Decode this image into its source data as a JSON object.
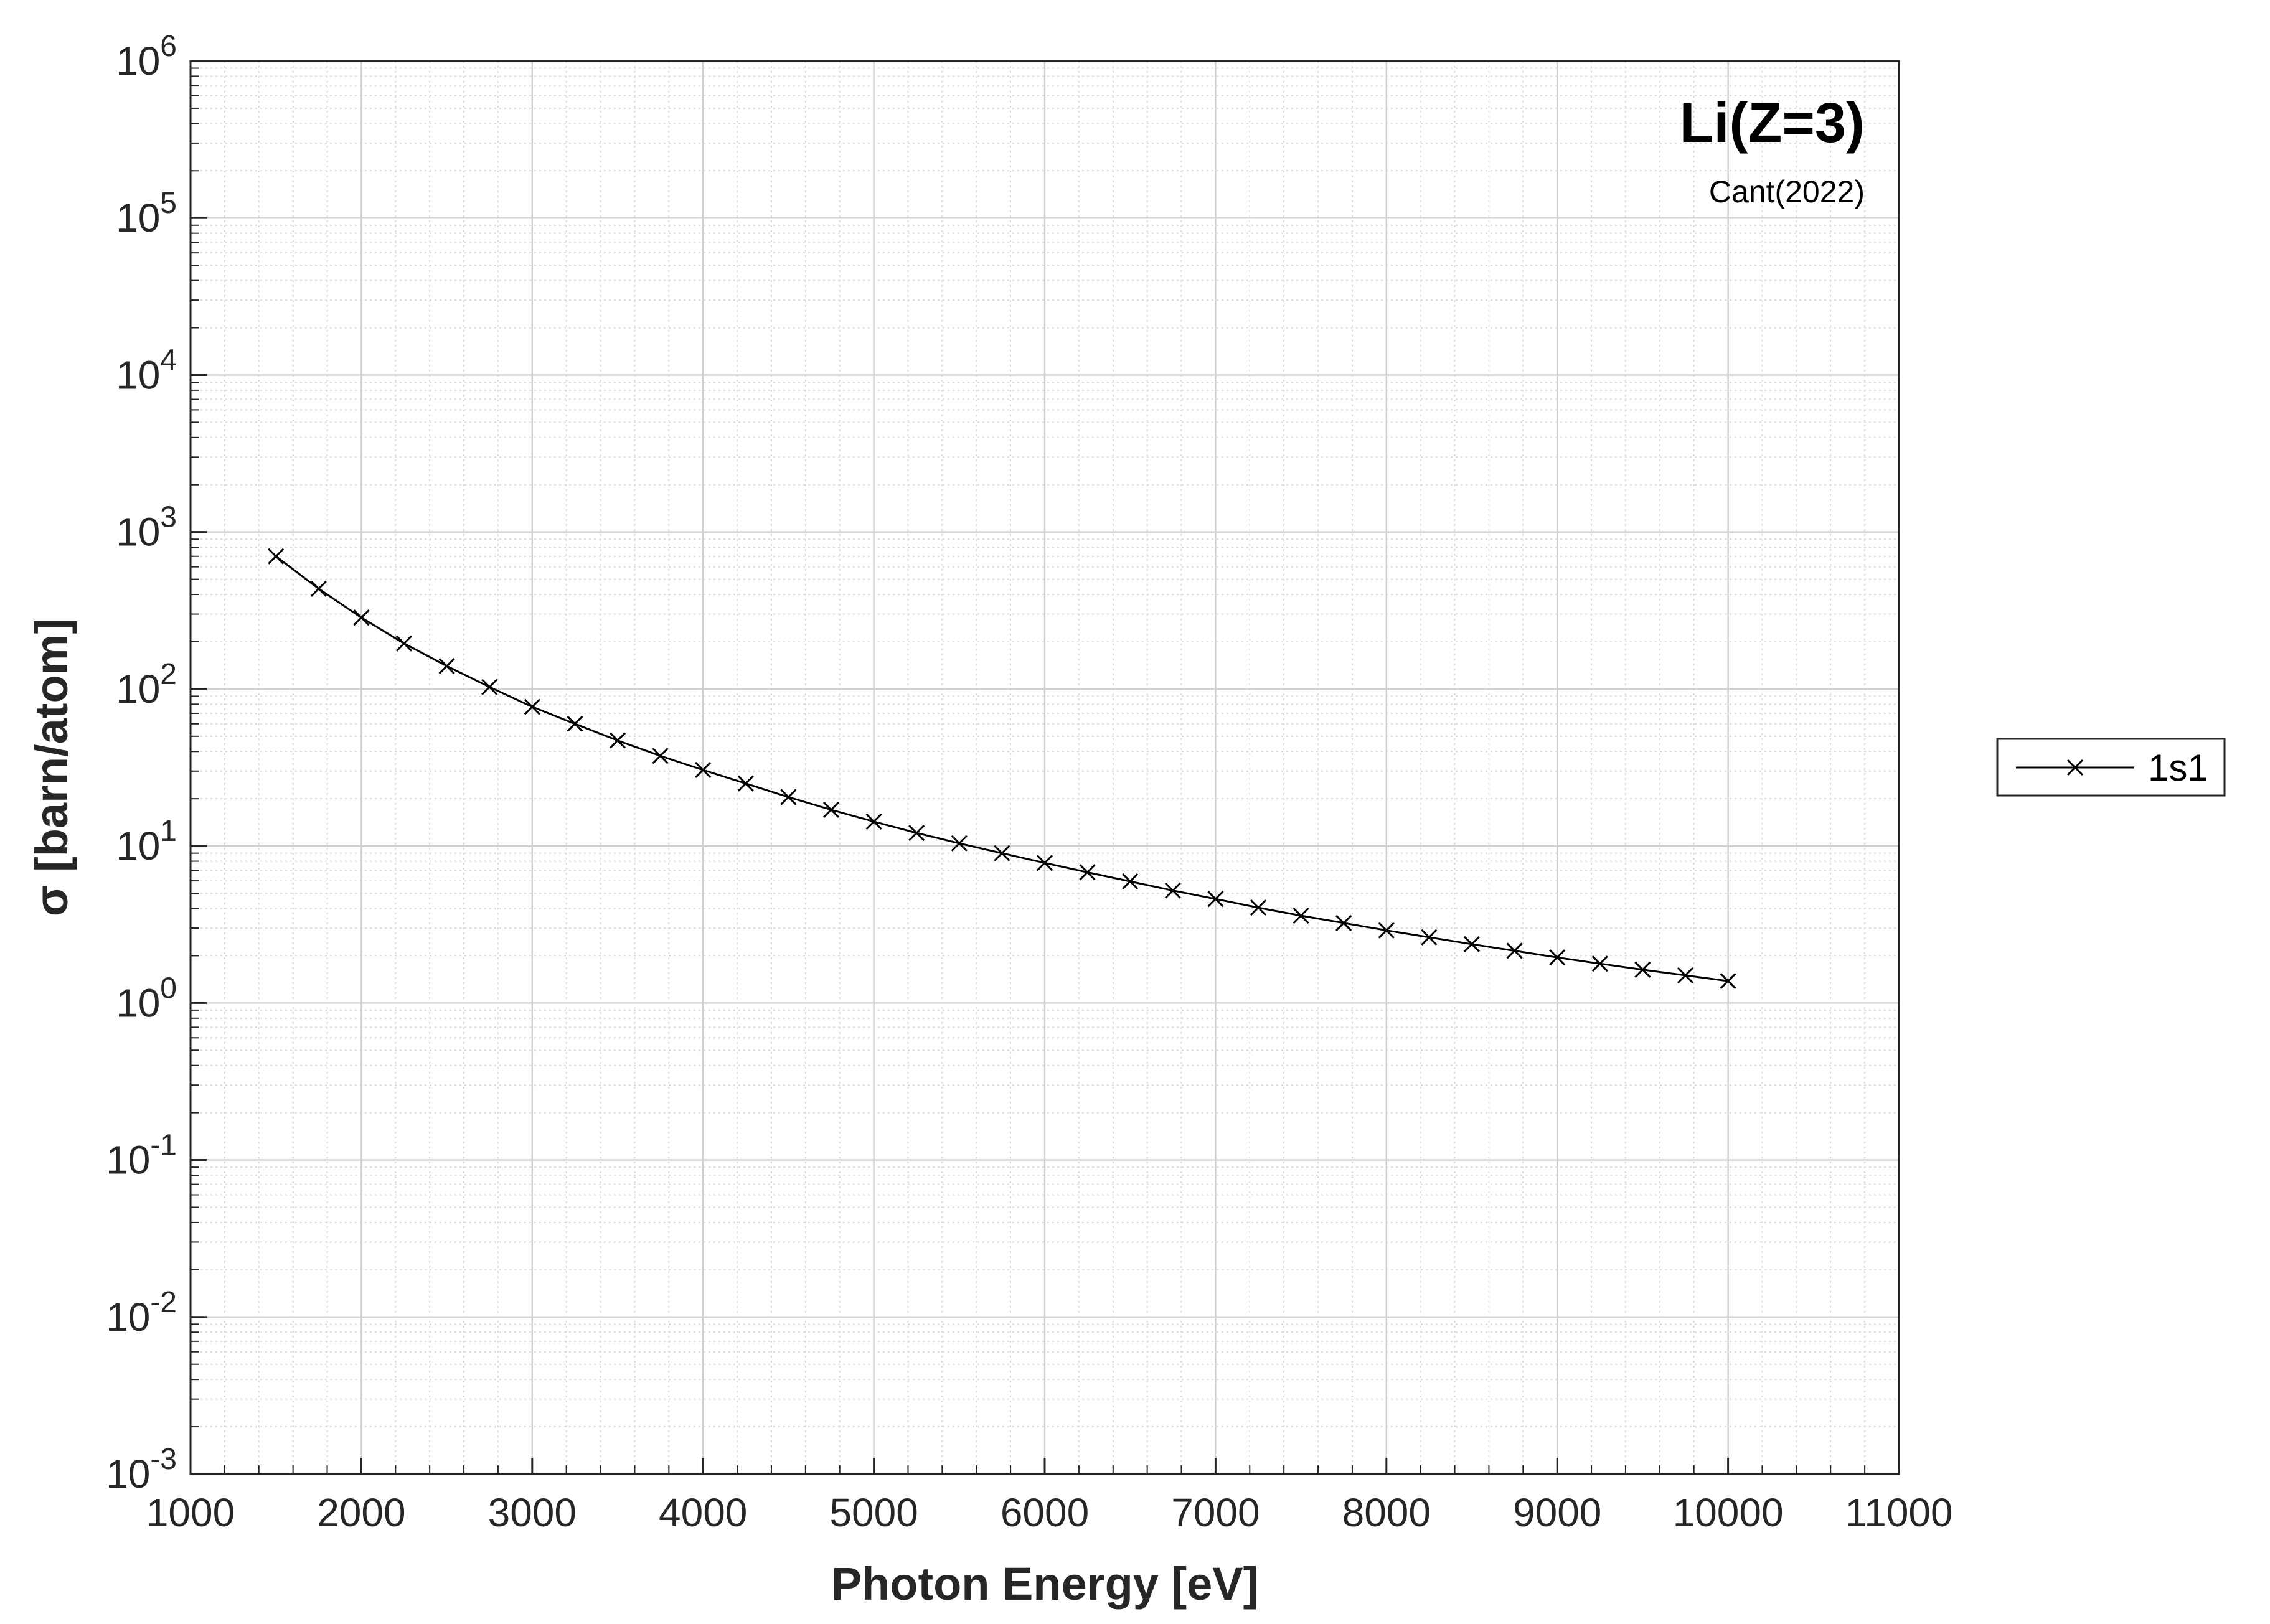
{
  "chart_data": {
    "type": "line",
    "title": "Li(Z=3)",
    "subtitle": "Cant(2022)",
    "xlabel": "Photon Energy [eV]",
    "ylabel": "σ [barn/atom]",
    "xlim": [
      1000,
      11000
    ],
    "ylim": [
      0.001,
      1000000
    ],
    "yscale": "log",
    "grid": "major and minor",
    "legend_position": "outside right",
    "x_ticks": [
      "1000",
      "2000",
      "3000",
      "4000",
      "5000",
      "6000",
      "7000",
      "8000",
      "9000",
      "10000",
      "11000"
    ],
    "y_ticks": [
      {
        "base": "10",
        "exp": "-3"
      },
      {
        "base": "10",
        "exp": "-2"
      },
      {
        "base": "10",
        "exp": "-1"
      },
      {
        "base": "10",
        "exp": "0"
      },
      {
        "base": "10",
        "exp": "1"
      },
      {
        "base": "10",
        "exp": "2"
      },
      {
        "base": "10",
        "exp": "3"
      },
      {
        "base": "10",
        "exp": "4"
      },
      {
        "base": "10",
        "exp": "5"
      },
      {
        "base": "10",
        "exp": "6"
      }
    ],
    "series": [
      {
        "name": "1s1",
        "color": "#000000",
        "marker": "x",
        "x": [
          1500,
          1750,
          2000,
          2250,
          2500,
          2750,
          3000,
          3250,
          3500,
          3750,
          4000,
          4250,
          4500,
          4750,
          5000,
          5250,
          5500,
          5750,
          6000,
          6250,
          6500,
          6750,
          7000,
          7250,
          7500,
          7750,
          8000,
          8250,
          8500,
          8750,
          9000,
          9250,
          9500,
          9750,
          10000
        ],
        "y": [
          700,
          435,
          285,
          195,
          140,
          103,
          77,
          60,
          47,
          37.5,
          30.5,
          25,
          20.5,
          17,
          14.3,
          12.1,
          10.4,
          9.0,
          7.8,
          6.8,
          5.95,
          5.2,
          4.6,
          4.05,
          3.6,
          3.23,
          2.9,
          2.62,
          2.37,
          2.15,
          1.95,
          1.78,
          1.63,
          1.5,
          1.38
        ]
      }
    ]
  }
}
